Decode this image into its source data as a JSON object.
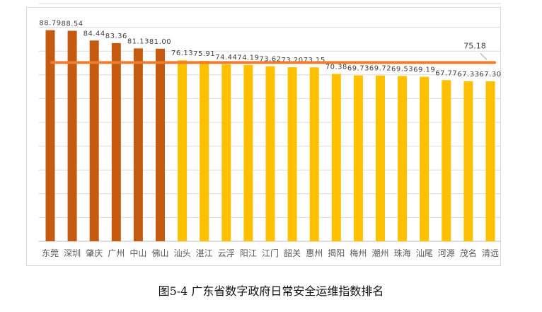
{
  "caption": "图5-4  广东省数字政府日常安全运维指数排名",
  "colors": {
    "top_bar": "#C55A11",
    "other_bar": "#FFC000",
    "average_line": "#ED7D31",
    "grid": "#d9d9d9",
    "text": "#595959"
  },
  "chart_data": {
    "type": "bar",
    "title": "",
    "xlabel": "",
    "ylabel": "",
    "ylim": [
      0,
      100
    ],
    "grid": true,
    "categories": [
      "东莞",
      "深圳",
      "肇庆",
      "广州",
      "中山",
      "佛山",
      "汕头",
      "湛江",
      "云浮",
      "阳江",
      "江门",
      "韶关",
      "惠州",
      "揭阳",
      "梅州",
      "潮州",
      "珠海",
      "汕尾",
      "河源",
      "茂名",
      "清远"
    ],
    "values": [
      88.79,
      88.54,
      84.44,
      83.36,
      81.13,
      81.0,
      76.13,
      75.91,
      74.44,
      74.19,
      73.62,
      73.2,
      73.15,
      70.38,
      69.73,
      69.72,
      69.53,
      69.19,
      67.77,
      67.33,
      67.3
    ],
    "value_labels": [
      "88.79",
      "88.54",
      "84.44",
      "83.36",
      "81.13",
      "81.00",
      "76.13",
      "75.91",
      "74.44",
      "74.19",
      "73.62",
      "73.20",
      "73.15",
      "70.38",
      "69.73",
      "69.72",
      "69.53",
      "69.19",
      "67.77",
      "67.33",
      "67.30"
    ],
    "highlight_count": 6,
    "average": 75.18,
    "average_label": "75.18"
  }
}
